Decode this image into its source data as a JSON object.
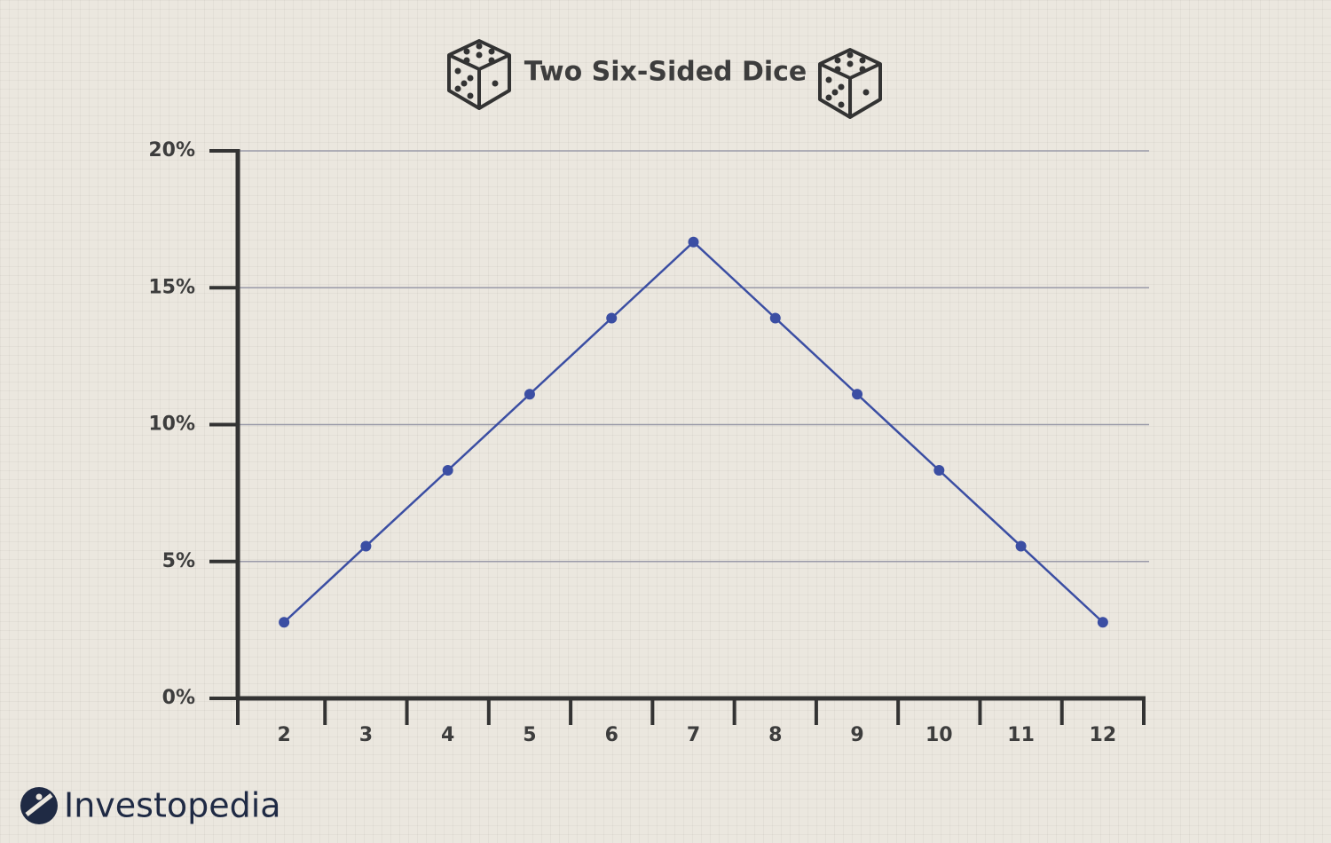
{
  "chart_data": {
    "type": "line",
    "title": "Two Six-Sided Dice",
    "categories": [
      "2",
      "3",
      "4",
      "5",
      "6",
      "7",
      "8",
      "9",
      "10",
      "11",
      "12"
    ],
    "values": [
      2.78,
      5.56,
      8.33,
      11.11,
      13.89,
      16.67,
      13.89,
      11.11,
      8.33,
      5.56,
      2.78
    ],
    "color": "#3b4ea3",
    "ylim": [
      0,
      20
    ],
    "yticks": [
      {
        "value": 0,
        "label": "0%"
      },
      {
        "value": 5,
        "label": "5%"
      },
      {
        "value": 10,
        "label": "10%"
      },
      {
        "value": 15,
        "label": "15%"
      },
      {
        "value": 20,
        "label": "20%"
      }
    ],
    "grid": true
  },
  "brand": "Investopedia"
}
